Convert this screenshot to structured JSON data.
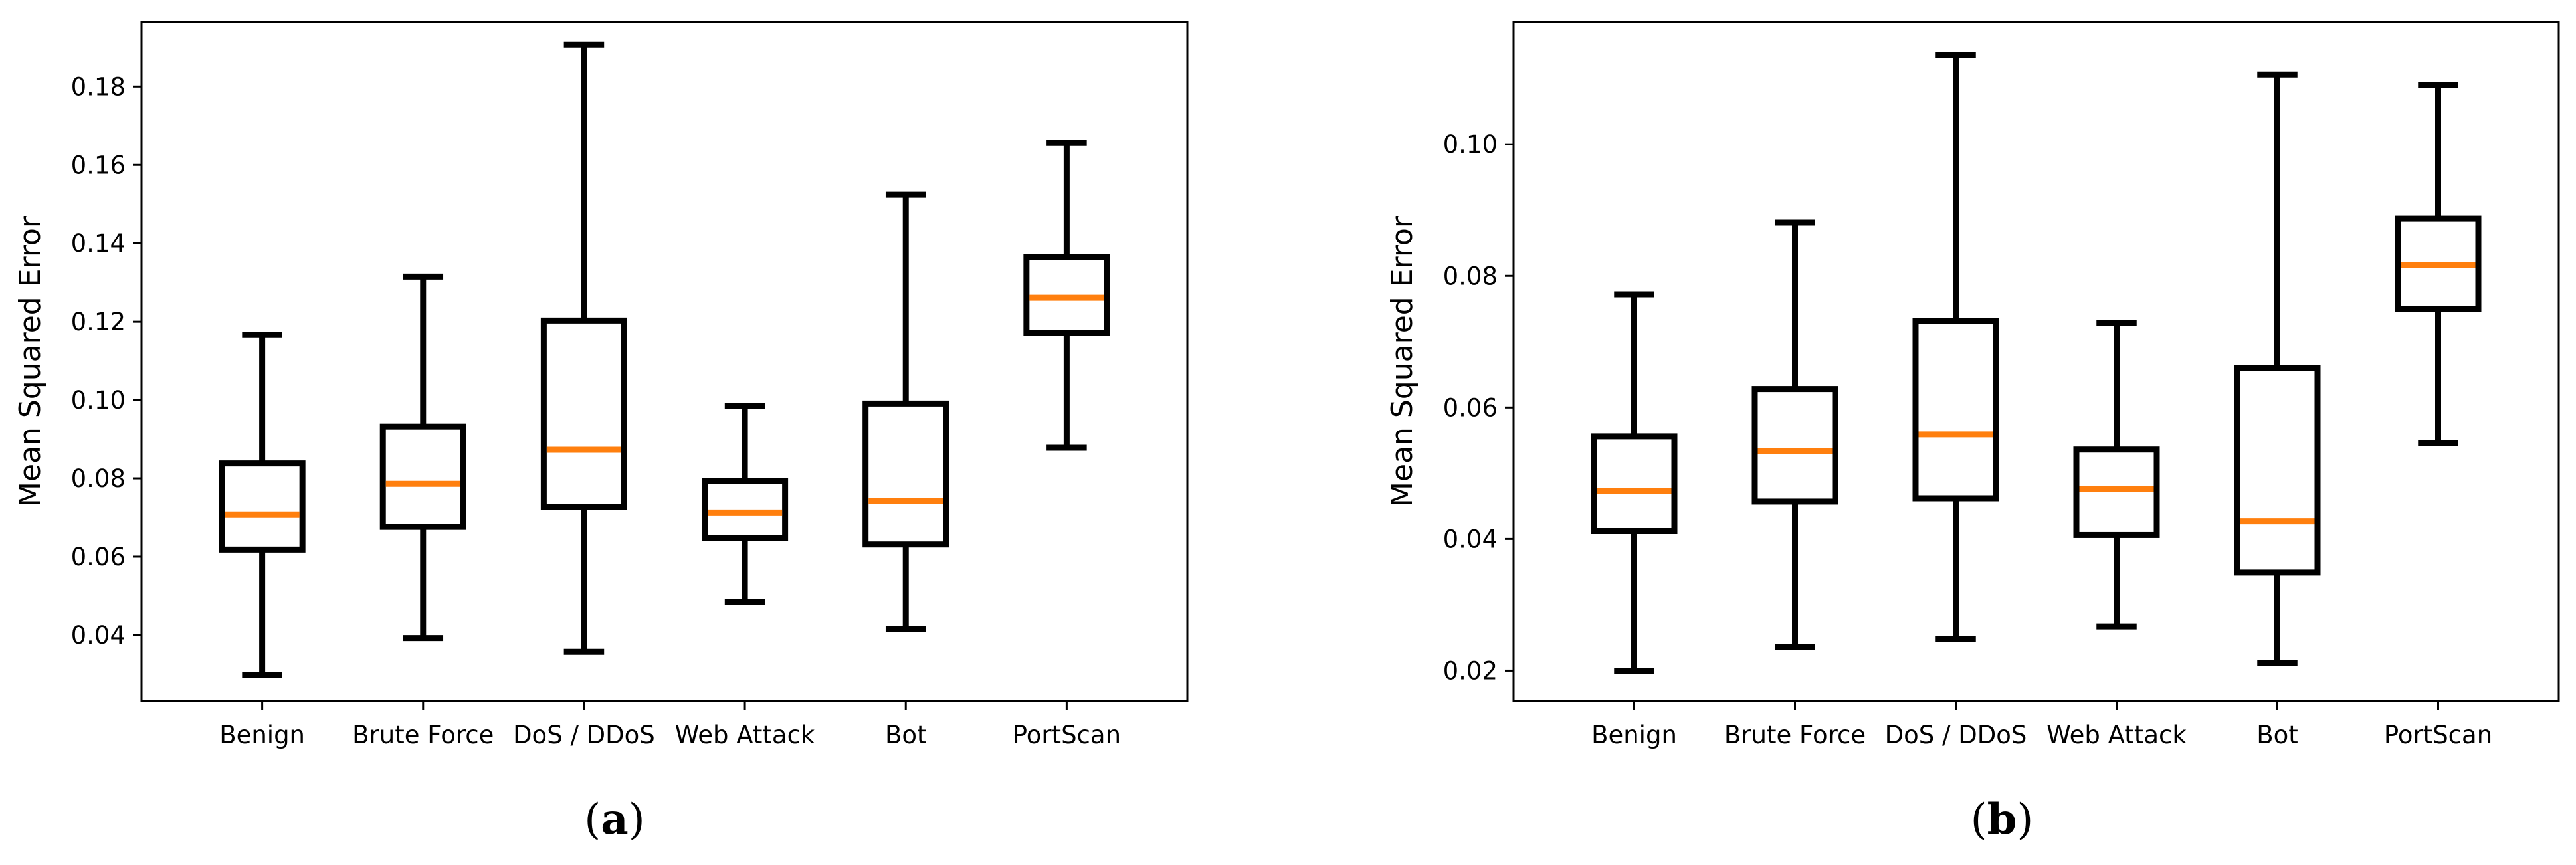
{
  "chart_data": [
    {
      "type": "boxplot",
      "caption_open": "(",
      "caption_letter": "a",
      "caption_close": ")",
      "ylabel": "Mean Squared Error",
      "xlabel": "",
      "ylim": [
        0.0232,
        0.1965
      ],
      "yticks": [
        0.04,
        0.06,
        0.08,
        0.1,
        0.12,
        0.14,
        0.16,
        0.18
      ],
      "ytick_labels": [
        "0.04",
        "0.06",
        "0.08",
        "0.10",
        "0.12",
        "0.14",
        "0.16",
        "0.18"
      ],
      "categories": [
        "Benign",
        "Brute Force",
        "DoS / DDoS",
        "Web Attack",
        "Bot",
        "PortScan"
      ],
      "boxes": [
        {
          "whisker_low": 0.0298,
          "q1": 0.0618,
          "median": 0.0708,
          "q3": 0.0838,
          "whisker_high": 0.1166
        },
        {
          "whisker_low": 0.0392,
          "q1": 0.0676,
          "median": 0.0786,
          "q3": 0.0932,
          "whisker_high": 0.1315
        },
        {
          "whisker_low": 0.0357,
          "q1": 0.0727,
          "median": 0.0873,
          "q3": 0.1203,
          "whisker_high": 0.1907
        },
        {
          "whisker_low": 0.0484,
          "q1": 0.0647,
          "median": 0.0713,
          "q3": 0.0794,
          "whisker_high": 0.0984
        },
        {
          "whisker_low": 0.0415,
          "q1": 0.0631,
          "median": 0.0743,
          "q3": 0.0991,
          "whisker_high": 0.1524
        },
        {
          "whisker_low": 0.0878,
          "q1": 0.1171,
          "median": 0.1261,
          "q3": 0.1364,
          "whisker_high": 0.1656
        }
      ],
      "box_color": "#000000",
      "median_color": "#ff7f0e"
    },
    {
      "type": "boxplot",
      "caption_open": "(",
      "caption_letter": "b",
      "caption_close": ")",
      "ylabel": "Mean Squared Error",
      "xlabel": "",
      "ylim": [
        0.0154,
        0.1186
      ],
      "yticks": [
        0.02,
        0.04,
        0.06,
        0.08,
        0.1
      ],
      "ytick_labels": [
        "0.02",
        "0.04",
        "0.06",
        "0.08",
        "0.10"
      ],
      "categories": [
        "Benign",
        "Brute Force",
        "DoS / DDoS",
        "Web Attack",
        "Bot",
        "PortScan"
      ],
      "boxes": [
        {
          "whisker_low": 0.0199,
          "q1": 0.0412,
          "median": 0.0473,
          "q3": 0.0556,
          "whisker_high": 0.0772
        },
        {
          "whisker_low": 0.0236,
          "q1": 0.0457,
          "median": 0.0534,
          "q3": 0.0628,
          "whisker_high": 0.0881
        },
        {
          "whisker_low": 0.0248,
          "q1": 0.0462,
          "median": 0.0559,
          "q3": 0.0732,
          "whisker_high": 0.1136
        },
        {
          "whisker_low": 0.0267,
          "q1": 0.0406,
          "median": 0.0476,
          "q3": 0.0536,
          "whisker_high": 0.0729
        },
        {
          "whisker_low": 0.0212,
          "q1": 0.0349,
          "median": 0.0427,
          "q3": 0.066,
          "whisker_high": 0.1106
        },
        {
          "whisker_low": 0.0546,
          "q1": 0.075,
          "median": 0.0816,
          "q3": 0.0887,
          "whisker_high": 0.109
        }
      ],
      "box_color": "#000000",
      "median_color": "#ff7f0e"
    }
  ]
}
